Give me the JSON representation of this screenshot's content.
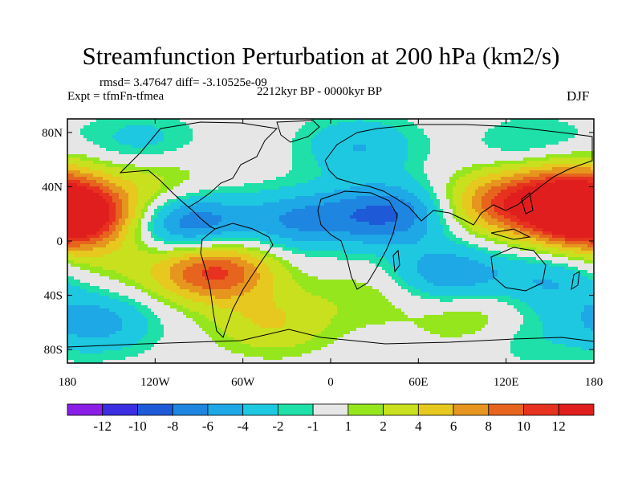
{
  "title": "Streamfunction Perturbation at 200 hPa (km2/s)",
  "stats": "rmsd= 3.47647 diff= -3.10525e-09",
  "experiment": "Expt = tfmFn-tfmea",
  "period": "2212kyr BP - 0000kyr BP",
  "season": "DJF",
  "lat_labels": [
    "80N",
    "40N",
    "0",
    "40S",
    "80S"
  ],
  "lon_labels": [
    "180",
    "120W",
    "60W",
    "0",
    "60E",
    "120E",
    "180"
  ],
  "colorbar": {
    "labels": [
      "-12",
      "-10",
      "-8",
      "-6",
      "-4",
      "-2",
      "-1",
      "1",
      "2",
      "4",
      "6",
      "8",
      "10",
      "12"
    ],
    "colors": [
      "#8a1ee6",
      "#3a2ee0",
      "#1e5ad8",
      "#1e86e0",
      "#1ea8e6",
      "#1ec8e0",
      "#1ee0a8",
      "#e6e6e6",
      "#96e61e",
      "#c8e01e",
      "#e6c81e",
      "#e6961e",
      "#e6641e",
      "#e6321e",
      "#e01e1e"
    ]
  },
  "chart_data": {
    "type": "heatmap",
    "title": "Streamfunction Perturbation at 200 hPa (km2/s)",
    "units": "km2/s",
    "levels": [
      -12,
      -10,
      -8,
      -6,
      -4,
      -2,
      -1,
      1,
      2,
      4,
      6,
      8,
      10,
      12
    ],
    "xrange": [
      -180,
      180
    ],
    "yrange": [
      -90,
      90
    ],
    "xticks": [
      -180,
      -120,
      -60,
      0,
      60,
      120,
      180
    ],
    "yticks": [
      80,
      40,
      0,
      -40,
      -80
    ],
    "features": [
      {
        "lon": -175,
        "lat": 20,
        "value": 12
      },
      {
        "lon": -80,
        "lat": -22,
        "value": 11
      },
      {
        "lon": 170,
        "lat": 18,
        "value": 10
      },
      {
        "lon": 120,
        "lat": 28,
        "value": 9
      },
      {
        "lon": 160,
        "lat": 45,
        "value": 6
      },
      {
        "lon": -120,
        "lat": 45,
        "value": 3
      },
      {
        "lon": -150,
        "lat": -15,
        "value": 2
      },
      {
        "lon": 30,
        "lat": -40,
        "value": 2
      },
      {
        "lon": -40,
        "lat": -60,
        "value": 4
      },
      {
        "lon": 100,
        "lat": -55,
        "value": 3
      },
      {
        "lon": -95,
        "lat": 12,
        "value": -8
      },
      {
        "lon": -20,
        "lat": 15,
        "value": -6
      },
      {
        "lon": 40,
        "lat": 20,
        "value": -8
      },
      {
        "lon": 80,
        "lat": -25,
        "value": -6
      },
      {
        "lon": 150,
        "lat": -30,
        "value": -4
      },
      {
        "lon": -160,
        "lat": -60,
        "value": -5
      },
      {
        "lon": -130,
        "lat": 72,
        "value": -3
      },
      {
        "lon": 20,
        "lat": 70,
        "value": -4
      },
      {
        "lon": 140,
        "lat": 68,
        "value": -3
      },
      {
        "lon": 130,
        "lat": -70,
        "value": -2
      }
    ]
  }
}
